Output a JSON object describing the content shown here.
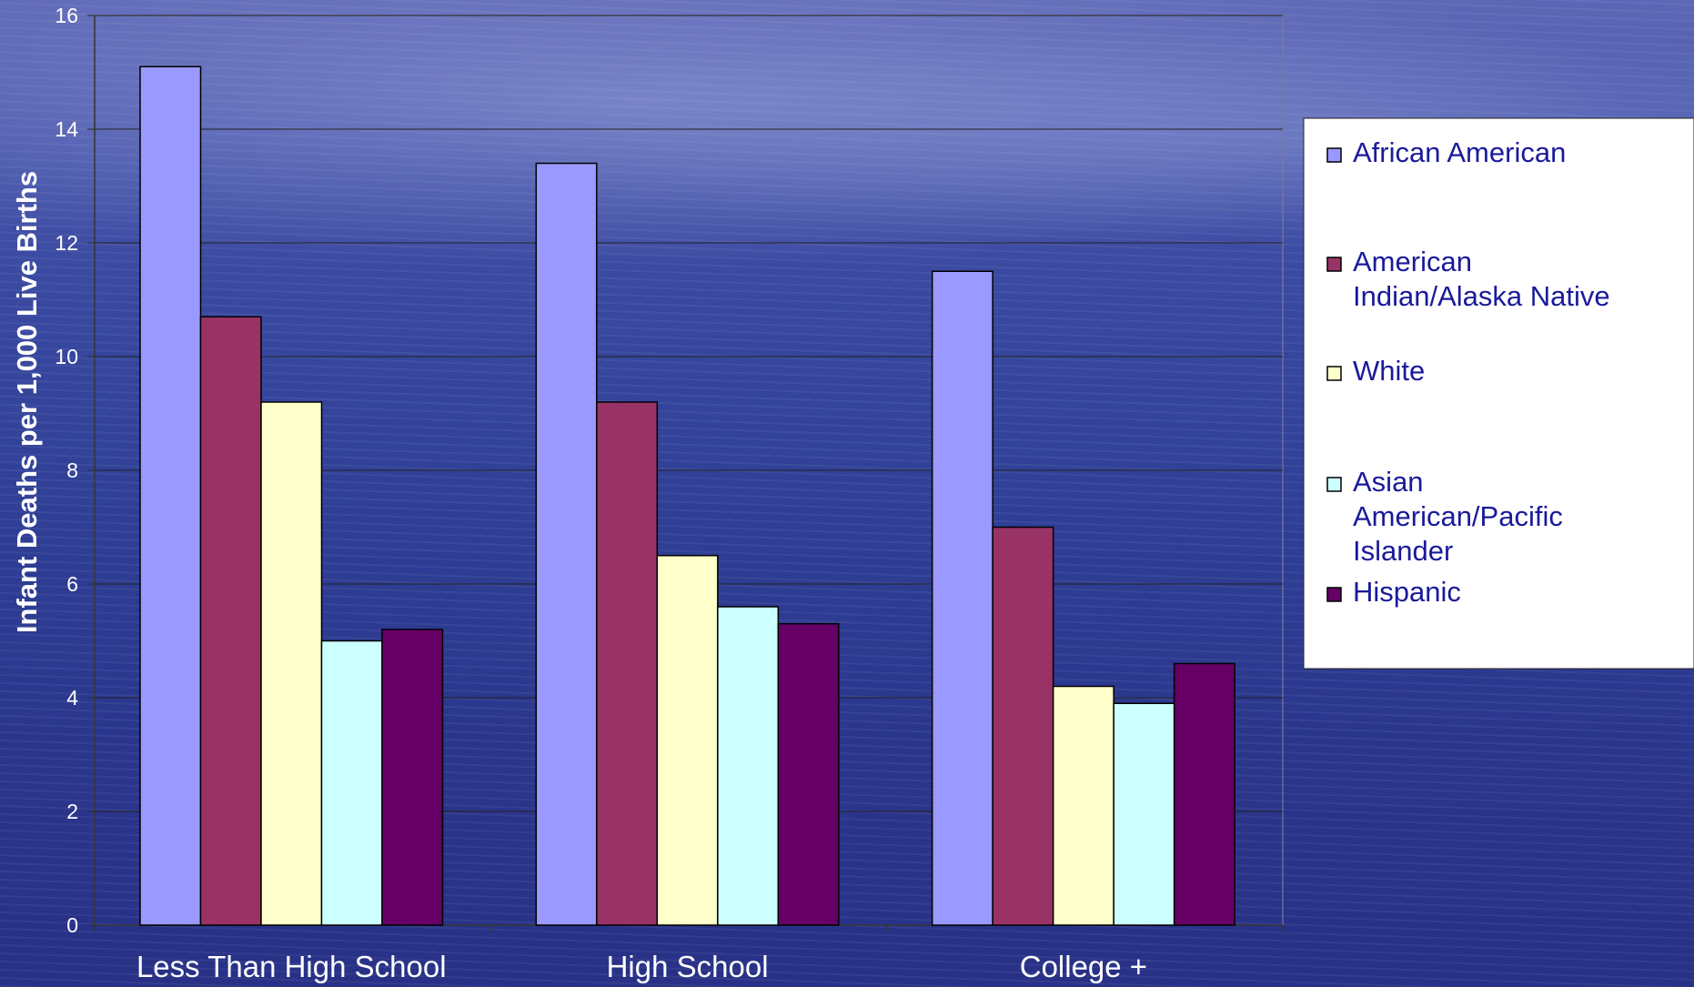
{
  "chart_data": {
    "type": "bar",
    "title": "",
    "xlabel": "",
    "ylabel": "Infant Deaths per 1,000 Live Births",
    "ylim": [
      0,
      16
    ],
    "ytick_step": 2,
    "yticks": [
      "0",
      "2",
      "4",
      "6",
      "8",
      "10",
      "12",
      "14",
      "16"
    ],
    "grid": true,
    "legend_position": "right",
    "categories": [
      "Less Than High School",
      "High School",
      "College +"
    ],
    "series": [
      {
        "name": "African American",
        "values": [
          15.1,
          13.4,
          11.5
        ],
        "color": "#9999ff"
      },
      {
        "name": "American Indian/Alaska Native",
        "values": [
          10.7,
          9.2,
          7.0
        ],
        "color": "#993366"
      },
      {
        "name": "White",
        "values": [
          9.2,
          6.5,
          4.2
        ],
        "color": "#ffffcc"
      },
      {
        "name": "Asian American/Pacific Islander",
        "values": [
          5.0,
          5.6,
          3.9
        ],
        "color": "#ccffff"
      },
      {
        "name": "Hispanic",
        "values": [
          5.2,
          5.3,
          4.6
        ],
        "color": "#660066"
      }
    ]
  }
}
